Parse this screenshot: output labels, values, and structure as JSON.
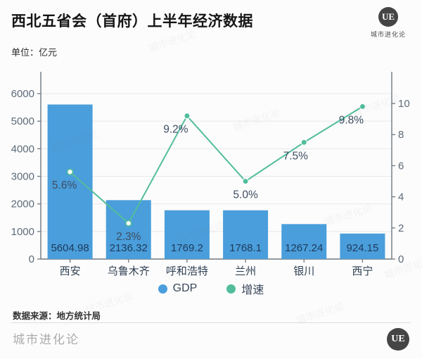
{
  "header": {
    "title": "西北五省会（首府）上半年经济数据",
    "unit_label": "单位：亿元",
    "logo_text": "UE",
    "logo_caption": "城市进化论"
  },
  "chart_data": {
    "type": "bar",
    "subtype": "bar-line-combo",
    "title": "西北五省会（首府）上半年经济数据",
    "unit": "亿元",
    "categories": [
      "西安",
      "乌鲁木齐",
      "呼和浩特",
      "兰州",
      "银川",
      "西宁"
    ],
    "series": [
      {
        "name": "GDP",
        "type": "bar",
        "axis": "left",
        "color": "#4A9EDB",
        "values": [
          5604.98,
          2136.32,
          1769.2,
          1768.1,
          1267.24,
          924.15
        ],
        "value_labels": [
          "5604.98",
          "2136.32",
          "1769.2",
          "1768.1",
          "1267.24",
          "924.15"
        ]
      },
      {
        "name": "增速",
        "type": "line",
        "axis": "right",
        "color": "#52BD9C",
        "values": [
          5.6,
          2.3,
          9.2,
          5.0,
          7.5,
          9.8
        ],
        "value_labels": [
          "5.6%",
          "2.3%",
          "9.2%",
          "5.0%",
          "7.5%",
          "9.8%"
        ]
      }
    ],
    "left_axis": {
      "min": 0,
      "max": 6000,
      "step": 1000,
      "tick_labels": [
        "0",
        "1000",
        "2000",
        "3000",
        "4000",
        "5000",
        "6000"
      ]
    },
    "right_axis": {
      "min": 0,
      "max": 10,
      "step": 2,
      "tick_labels": [
        "0",
        "2",
        "4",
        "6",
        "8",
        "10"
      ]
    },
    "legend": {
      "position": "bottom",
      "items": [
        "GDP",
        "增速"
      ]
    },
    "grid": true
  },
  "footer": {
    "source": "数据来源：地方统计局",
    "brand": "城市进化论",
    "logo_text": "UE"
  },
  "watermark": {
    "text": "城市进化论"
  },
  "colors": {
    "bar": "#4A9EDB",
    "line": "#52BD9C",
    "value_label": "#1E3A5C",
    "pct_label": "#3D4D61",
    "axis_text": "#5D6B79",
    "axis_line": "#6E7880",
    "grid": "#E9E9E9",
    "title": "#151515",
    "brand_gray": "#ABABAB",
    "logo_dark": "#454545"
  }
}
